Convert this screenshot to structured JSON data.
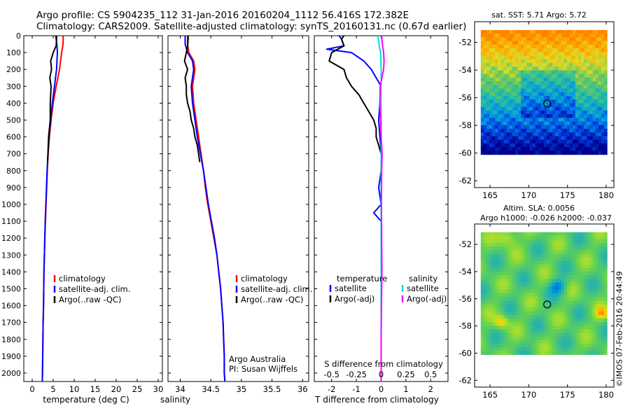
{
  "header": {
    "line1": "Argo profile: CS 5904235_112 31-Jan-2016 20160204_1112 56.416S 172.382E",
    "line2": "Climatology: CARS2009. Satellite-adjusted climatology: synTS_20160131.nc (0.67d earlier)"
  },
  "credit": "©IMOS 07-Feb-2016 20:44:49",
  "colors": {
    "climatology": "#ff0000",
    "satellite_adj": "#0000ff",
    "argo": "#000000",
    "salinity_satellite": "#00e0e0",
    "salinity_argo": "#ff00ff"
  },
  "chart_data": [
    {
      "id": "temperature",
      "type": "line",
      "xlabel": "temperature (deg C)",
      "xlim": [
        -2,
        31
      ],
      "xticks": [
        0,
        5,
        10,
        15,
        20,
        25,
        30
      ],
      "ylim": [
        2050,
        0
      ],
      "yticks": [
        0,
        100,
        200,
        300,
        400,
        500,
        600,
        700,
        800,
        900,
        1000,
        1100,
        1200,
        1300,
        1400,
        1500,
        1600,
        1700,
        1800,
        1900,
        2000
      ],
      "legend": [
        "climatology",
        "satellite-adj. clim.",
        "Argo(..raw -QC)"
      ],
      "series": [
        {
          "name": "climatology",
          "color": "#ff0000",
          "depth": [
            0,
            20,
            60,
            100,
            200,
            300,
            400,
            500,
            600,
            700,
            800,
            900,
            1000,
            1100,
            1200,
            1300,
            1400,
            1500,
            1600,
            1700,
            1800,
            1900,
            2000,
            2050
          ],
          "values": [
            7.3,
            7.4,
            7.3,
            7.0,
            6.5,
            5.7,
            5.0,
            4.5,
            4.1,
            3.8,
            3.6,
            3.45,
            3.3,
            3.15,
            3.0,
            2.9,
            2.8,
            2.75,
            2.7,
            2.6,
            2.55,
            2.5,
            2.45,
            2.4
          ]
        },
        {
          "name": "satellite-adj. clim.",
          "color": "#0000ff",
          "depth": [
            0,
            20,
            60,
            100,
            200,
            300,
            400,
            500,
            600,
            700,
            800,
            900,
            1000,
            1100,
            1200,
            1300,
            1400,
            1500,
            1600,
            1700,
            1800,
            1900,
            2000,
            2050
          ],
          "values": [
            5.6,
            5.7,
            5.9,
            6.0,
            5.8,
            5.3,
            4.8,
            4.4,
            4.0,
            3.75,
            3.55,
            3.4,
            3.25,
            3.1,
            3.0,
            2.9,
            2.8,
            2.75,
            2.7,
            2.6,
            2.55,
            2.5,
            2.45,
            2.4
          ]
        },
        {
          "name": "Argo(..raw -QC)",
          "color": "#000000",
          "depth": [
            0,
            20,
            60,
            100,
            150,
            200,
            250,
            300,
            400,
            500,
            600,
            700,
            750
          ],
          "values": [
            5.8,
            5.8,
            5.7,
            5.0,
            4.4,
            4.6,
            4.2,
            4.5,
            4.3,
            4.3,
            3.9,
            3.75,
            3.65
          ]
        }
      ]
    },
    {
      "id": "salinity",
      "type": "line",
      "xlabel": "salinity",
      "xlim": [
        33.8,
        36.1
      ],
      "xticks": [
        34,
        34.5,
        35,
        35.5,
        36
      ],
      "ylim": [
        2050,
        0
      ],
      "legend": [
        "climatology",
        "satellite-adj. clim.",
        "Argo(..raw -QC)"
      ],
      "annotation": [
        "Argo Australia",
        "PI: Susan Wijffels"
      ],
      "series": [
        {
          "name": "climatology",
          "color": "#ff0000",
          "depth": [
            0,
            50,
            100,
            150,
            200,
            300,
            400,
            500,
            600,
            700,
            800,
            900,
            1000,
            1100,
            1200,
            1300,
            1400,
            1500,
            1600,
            1700,
            1800,
            1900,
            2000,
            2050
          ],
          "values": [
            34.12,
            34.12,
            34.14,
            34.22,
            34.24,
            34.2,
            34.22,
            34.26,
            34.3,
            34.34,
            34.38,
            34.41,
            34.45,
            34.5,
            34.55,
            34.6,
            34.63,
            34.66,
            34.68,
            34.7,
            34.71,
            34.72,
            34.72,
            34.73
          ]
        },
        {
          "name": "satellite-adj. clim.",
          "color": "#0000ff",
          "depth": [
            0,
            50,
            100,
            150,
            200,
            300,
            400,
            500,
            600,
            700,
            800,
            900,
            1000,
            1100,
            1200,
            1300,
            1400,
            1500,
            1600,
            1700,
            1800,
            1900,
            2000,
            2050
          ],
          "values": [
            34.08,
            34.08,
            34.12,
            34.2,
            34.22,
            34.18,
            34.2,
            34.24,
            34.28,
            34.33,
            34.38,
            34.42,
            34.46,
            34.51,
            34.56,
            34.6,
            34.63,
            34.66,
            34.68,
            34.7,
            34.71,
            34.72,
            34.72,
            34.73
          ]
        },
        {
          "name": "Argo(..raw -QC)",
          "color": "#000000",
          "depth": [
            0,
            20,
            60,
            100,
            150,
            200,
            250,
            300,
            350,
            400,
            450,
            500,
            550,
            600,
            650,
            700,
            750
          ],
          "values": [
            34.13,
            34.13,
            34.12,
            34.1,
            34.07,
            34.12,
            34.08,
            34.1,
            34.1,
            34.12,
            34.16,
            34.18,
            34.22,
            34.24,
            34.28,
            34.3,
            34.32
          ]
        }
      ]
    },
    {
      "id": "difference",
      "type": "line",
      "xlabel": "T difference from climatology",
      "xlabel_top": "S difference from climatology",
      "xlim": [
        -2.7,
        2.7
      ],
      "xticks": [
        -2,
        -1,
        0,
        1,
        2
      ],
      "xticks_labels": [
        "-2",
        "-1",
        "0",
        "1",
        "2"
      ],
      "s_ticks": [
        -0.5,
        -0.25,
        0,
        0.25,
        0.5
      ],
      "s_ticks_labels": [
        "-0.5",
        "-0.25",
        "0",
        "0.25",
        "0.5"
      ],
      "ylim": [
        2050,
        0
      ],
      "legend_temperature": {
        "title": "temperature",
        "items": [
          "satellite",
          "Argo(-adj)"
        ]
      },
      "legend_salinity": {
        "title": "salinity",
        "items": [
          "satellite",
          "Argo(-adj)"
        ]
      },
      "series": [
        {
          "name": "temperature satellite",
          "color": "#0000ff",
          "depth": [
            0,
            20,
            60,
            80,
            100,
            150,
            200,
            300,
            500,
            700,
            800,
            900,
            1000,
            1050,
            1100,
            1200,
            1500,
            1800,
            2050
          ],
          "values": [
            -1.7,
            -1.6,
            -1.5,
            -2.2,
            -1.2,
            -0.7,
            -0.4,
            0,
            -0.1,
            0,
            0,
            -0.1,
            0,
            -0.3,
            0,
            0,
            0,
            0,
            0
          ]
        },
        {
          "name": "temperature Argo(-adj)",
          "color": "#000000",
          "depth": [
            0,
            20,
            60,
            100,
            150,
            200,
            250,
            300,
            350,
            400,
            450,
            500,
            550,
            600,
            650,
            700,
            750
          ],
          "values": [
            -1.5,
            -1.6,
            -1.5,
            -2.0,
            -2.1,
            -1.5,
            -1.4,
            -1.2,
            -0.9,
            -0.7,
            -0.5,
            -0.3,
            -0.2,
            -0.2,
            -0.1,
            0,
            0
          ]
        },
        {
          "name": "salinity satellite",
          "color": "#00e0e0",
          "depth": [
            0,
            30,
            60,
            100,
            200,
            300,
            500,
            800,
            1100,
            1500,
            1800,
            2050
          ],
          "values": [
            -0.15,
            -0.1,
            -0.08,
            -0.02,
            0,
            0,
            0,
            0,
            0,
            0,
            0,
            0
          ]
        },
        {
          "name": "salinity Argo(-adj)",
          "color": "#ff00ff",
          "depth": [
            0,
            50,
            100,
            150,
            200,
            300,
            400,
            500,
            600,
            650,
            700,
            800,
            1000,
            1200,
            1400,
            1600,
            1800,
            2050
          ],
          "values": [
            0.02,
            0.05,
            0.1,
            0.12,
            0.1,
            -0.04,
            -0.05,
            -0.02,
            0,
            0.02,
            0.04,
            0.02,
            0.01,
            0.02,
            0.03,
            0.01,
            0,
            0
          ]
        }
      ]
    },
    {
      "id": "sst_map",
      "type": "heatmap",
      "title": "sat. SST: 5.71  Argo: 5.72",
      "xlim": [
        163,
        181
      ],
      "xticks": [
        165,
        170,
        175,
        180
      ],
      "ylim": [
        -62.5,
        -50.5
      ],
      "yticks": [
        -52,
        -54,
        -56,
        -58,
        -60,
        -62
      ],
      "marker": {
        "lon": 172.38,
        "lat": -56.42
      }
    },
    {
      "id": "sla_map",
      "type": "heatmap",
      "title": "Altim. SLA: 0.0056",
      "subtitle": "Argo h1000: -0.026 h2000: -0.037",
      "xlim": [
        163,
        181
      ],
      "xticks": [
        165,
        170,
        175,
        180
      ],
      "ylim": [
        -62.5,
        -50.5
      ],
      "yticks": [
        -52,
        -54,
        -56,
        -58,
        -60,
        -62
      ],
      "marker": {
        "lon": 172.38,
        "lat": -56.42
      }
    }
  ]
}
